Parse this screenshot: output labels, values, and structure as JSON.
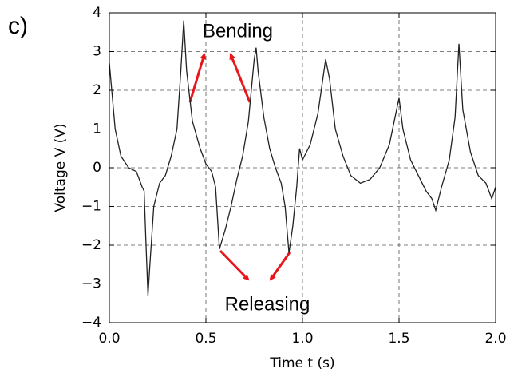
{
  "chart_data": {
    "type": "line",
    "panel_label": "c)",
    "xlabel": "Time t (s)",
    "ylabel": "Voltage V (V)",
    "annotations": [
      "Bending",
      "Releasing"
    ],
    "x": [
      0,
      0.03,
      0.06,
      0.1,
      0.14,
      0.17,
      0.18,
      0.19,
      0.2,
      0.21,
      0.23,
      0.26,
      0.29,
      0.32,
      0.35,
      0.37,
      0.385,
      0.4,
      0.43,
      0.47,
      0.5,
      0.53,
      0.55,
      0.56,
      0.57,
      0.6,
      0.63,
      0.66,
      0.69,
      0.72,
      0.75,
      0.76,
      0.77,
      0.8,
      0.83,
      0.86,
      0.89,
      0.91,
      0.93,
      0.95,
      0.97,
      0.985,
      1.0,
      1.04,
      1.08,
      1.12,
      1.14,
      1.17,
      1.21,
      1.25,
      1.3,
      1.35,
      1.4,
      1.45,
      1.5,
      1.52,
      1.56,
      1.6,
      1.64,
      1.67,
      1.69,
      1.72,
      1.76,
      1.79,
      1.81,
      1.83,
      1.87,
      1.91,
      1.95,
      1.98,
      2.0
    ],
    "series": [
      {
        "color": "#222222",
        "values": [
          2.7,
          1.0,
          0.3,
          0.0,
          -0.1,
          -0.5,
          -0.6,
          -2.0,
          -3.3,
          -2.5,
          -1.0,
          -0.4,
          -0.2,
          0.3,
          1.0,
          2.5,
          3.8,
          2.5,
          1.2,
          0.5,
          0.1,
          -0.1,
          -0.5,
          -1.3,
          -2.1,
          -1.6,
          -1.0,
          -0.3,
          0.3,
          1.2,
          2.8,
          3.1,
          2.5,
          1.3,
          0.5,
          0.0,
          -0.4,
          -1.0,
          -2.2,
          -1.5,
          -0.5,
          0.5,
          0.2,
          0.6,
          1.4,
          2.8,
          2.3,
          1.0,
          0.3,
          -0.2,
          -0.4,
          -0.3,
          0.0,
          0.6,
          1.8,
          1.0,
          0.2,
          -0.2,
          -0.6,
          -0.8,
          -1.1,
          -0.5,
          0.2,
          1.3,
          3.2,
          1.5,
          0.4,
          -0.2,
          -0.4,
          -0.8,
          -0.5
        ]
      }
    ],
    "xlim": [
      0,
      2
    ],
    "xticks": [
      {
        "value": 0,
        "label": "0.0"
      },
      0.5,
      {
        "value": 1,
        "label": "1.0"
      },
      1.5,
      {
        "value": 2,
        "label": "2.0"
      }
    ],
    "ylim": [
      -4,
      4
    ],
    "yticks": [
      {
        "value": -4,
        "label": "−4"
      },
      {
        "value": -3,
        "label": "−3"
      },
      {
        "value": -2,
        "label": "−2"
      },
      {
        "value": -1,
        "label": "−1"
      },
      0,
      1,
      2,
      3,
      4
    ],
    "grid": true
  }
}
